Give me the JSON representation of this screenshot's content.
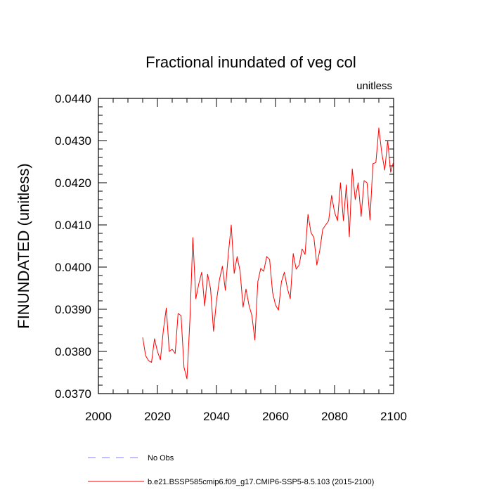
{
  "chart_data": {
    "type": "line",
    "title": "Fractional inundated of veg col",
    "units_label": "unitless",
    "xlabel": "",
    "ylabel": "FINUNDATED  (unitless)",
    "xlim": [
      2000,
      2100
    ],
    "ylim": [
      0.037,
      0.044
    ],
    "x_ticks": [
      2000,
      2020,
      2040,
      2060,
      2080,
      2100
    ],
    "y_ticks": [
      "0.0370",
      "0.0380",
      "0.0390",
      "0.0400",
      "0.0410",
      "0.0420",
      "0.0430",
      "0.0440"
    ],
    "x": [
      2015,
      2016,
      2017,
      2018,
      2019,
      2020,
      2021,
      2022,
      2023,
      2024,
      2025,
      2026,
      2027,
      2028,
      2029,
      2030,
      2031,
      2032,
      2033,
      2034,
      2035,
      2036,
      2037,
      2038,
      2039,
      2040,
      2041,
      2042,
      2043,
      2044,
      2045,
      2046,
      2047,
      2048,
      2049,
      2050,
      2051,
      2052,
      2053,
      2054,
      2055,
      2056,
      2057,
      2058,
      2059,
      2060,
      2061,
      2062,
      2063,
      2064,
      2065,
      2066,
      2067,
      2068,
      2069,
      2070,
      2071,
      2072,
      2073,
      2074,
      2075,
      2076,
      2077,
      2078,
      2079,
      2080,
      2081,
      2082,
      2083,
      2084,
      2085,
      2086,
      2087,
      2088,
      2089,
      2090,
      2091,
      2092,
      2093,
      2094,
      2095,
      2096,
      2097,
      2098,
      2099,
      2100
    ],
    "series": [
      {
        "name": "b.e21.BSSP585cmip6.f09_g17.CMIP6-SSP5-8.5.103 (2015-2100)",
        "color": "#ff0000",
        "style": "solid",
        "values": [
          0.03833,
          0.0379,
          0.03778,
          0.03774,
          0.0383,
          0.038,
          0.0378,
          0.0385,
          0.03903,
          0.038,
          0.03805,
          0.03795,
          0.0389,
          0.03885,
          0.03762,
          0.03735,
          0.03875,
          0.0407,
          0.03925,
          0.0396,
          0.03988,
          0.03908,
          0.03983,
          0.03948,
          0.03848,
          0.0392,
          0.0397,
          0.04002,
          0.03945,
          0.0403,
          0.041,
          0.03985,
          0.04025,
          0.0399,
          0.03905,
          0.03948,
          0.0391,
          0.03885,
          0.03827,
          0.03965,
          0.03997,
          0.0399,
          0.04025,
          0.04018,
          0.0394,
          0.0391,
          0.03898,
          0.03965,
          0.03988,
          0.0395,
          0.03925,
          0.04032,
          0.03995,
          0.04005,
          0.04043,
          0.0403,
          0.04125,
          0.04082,
          0.0407,
          0.04005,
          0.0404,
          0.0409,
          0.041,
          0.0411,
          0.0417,
          0.0413,
          0.0411,
          0.042,
          0.0411,
          0.04195,
          0.04072,
          0.04233,
          0.0416,
          0.042,
          0.0412,
          0.04205,
          0.042,
          0.04112,
          0.04245,
          0.04248,
          0.0433,
          0.0427,
          0.0423,
          0.043,
          0.04225,
          0.0425
        ]
      }
    ],
    "legend": [
      {
        "label": "No Obs",
        "color": "#8080ff",
        "style": "dashed"
      },
      {
        "label": "b.e21.BSSP585cmip6.f09_g17.CMIP6-SSP5-8.5.103 (2015-2100)",
        "color": "#ff0000",
        "style": "solid"
      }
    ]
  }
}
